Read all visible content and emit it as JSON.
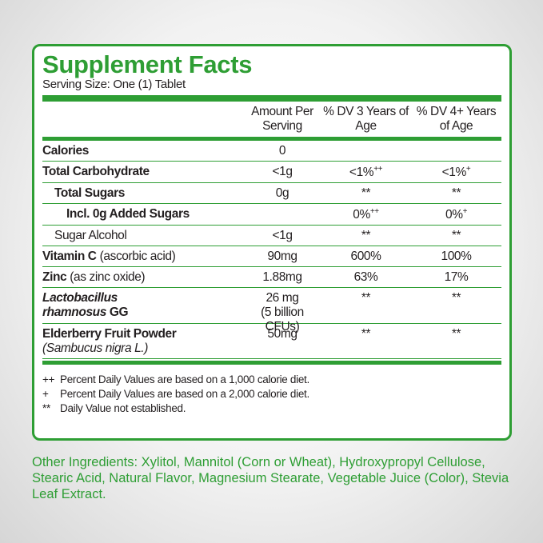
{
  "title": "Supplement Facts",
  "serving_size": "Serving Size: One (1) Tablet",
  "columns": [
    "Amount Per Serving",
    "% DV 3 Years of Age",
    "% DV 4+ Years of Age"
  ],
  "rows": [
    {
      "name": "Calories",
      "amount": "0"
    },
    {
      "name": "Total Carbohydrate",
      "amount": "<1g",
      "dv3": "<1%",
      "dv3_sup": "++",
      "dv4": "<1%",
      "dv4_sup": "+"
    },
    {
      "name": "Total  Sugars",
      "amount": "0g",
      "dv3": "**",
      "dv4": "**"
    },
    {
      "name": "Incl. 0g Added Sugars",
      "dv3": "0%",
      "dv3_sup": "++",
      "dv4": "0%",
      "dv4_sup": "+"
    },
    {
      "name": "Sugar Alcohol",
      "amount": "<1g",
      "dv3": "**",
      "dv4": "**"
    },
    {
      "name": "Vitamin C",
      "note": "(ascorbic acid)",
      "amount": "90mg",
      "dv3": "600%",
      "dv4": "100%"
    },
    {
      "name": "Zinc",
      "note": "(as zinc oxide)",
      "amount": "1.88mg",
      "dv3": "63%",
      "dv4": "17%"
    },
    {
      "name_lines": [
        "Lactobacillus",
        "rhamnosus"
      ],
      "suffix": "GG",
      "amount": "26 mg",
      "amount_note": "(5 billion CFUs)",
      "dv3": "**",
      "dv4": "**"
    },
    {
      "name": "Elderberry Fruit Powder",
      "note": "(Sambucus nigra L.)",
      "amount": "50mg",
      "dv3": "**",
      "dv4": "**"
    }
  ],
  "footnotes": [
    {
      "marker": "++",
      "text": "Percent Daily Values are based on a 1,000 calorie diet."
    },
    {
      "marker": "+",
      "text": "Percent Daily Values are based on a 2,000 calorie diet."
    },
    {
      "marker": "**",
      "text": "Daily Value not established."
    }
  ],
  "other_ingredients": "Other Ingredients: Xylitol, Mannitol (Corn or Wheat), Hydroxypropyl Cellulose, Stearic Acid, Natural Flavor,  Magnesium Stearate, Vegetable Juice (Color), Stevia Leaf Extract."
}
